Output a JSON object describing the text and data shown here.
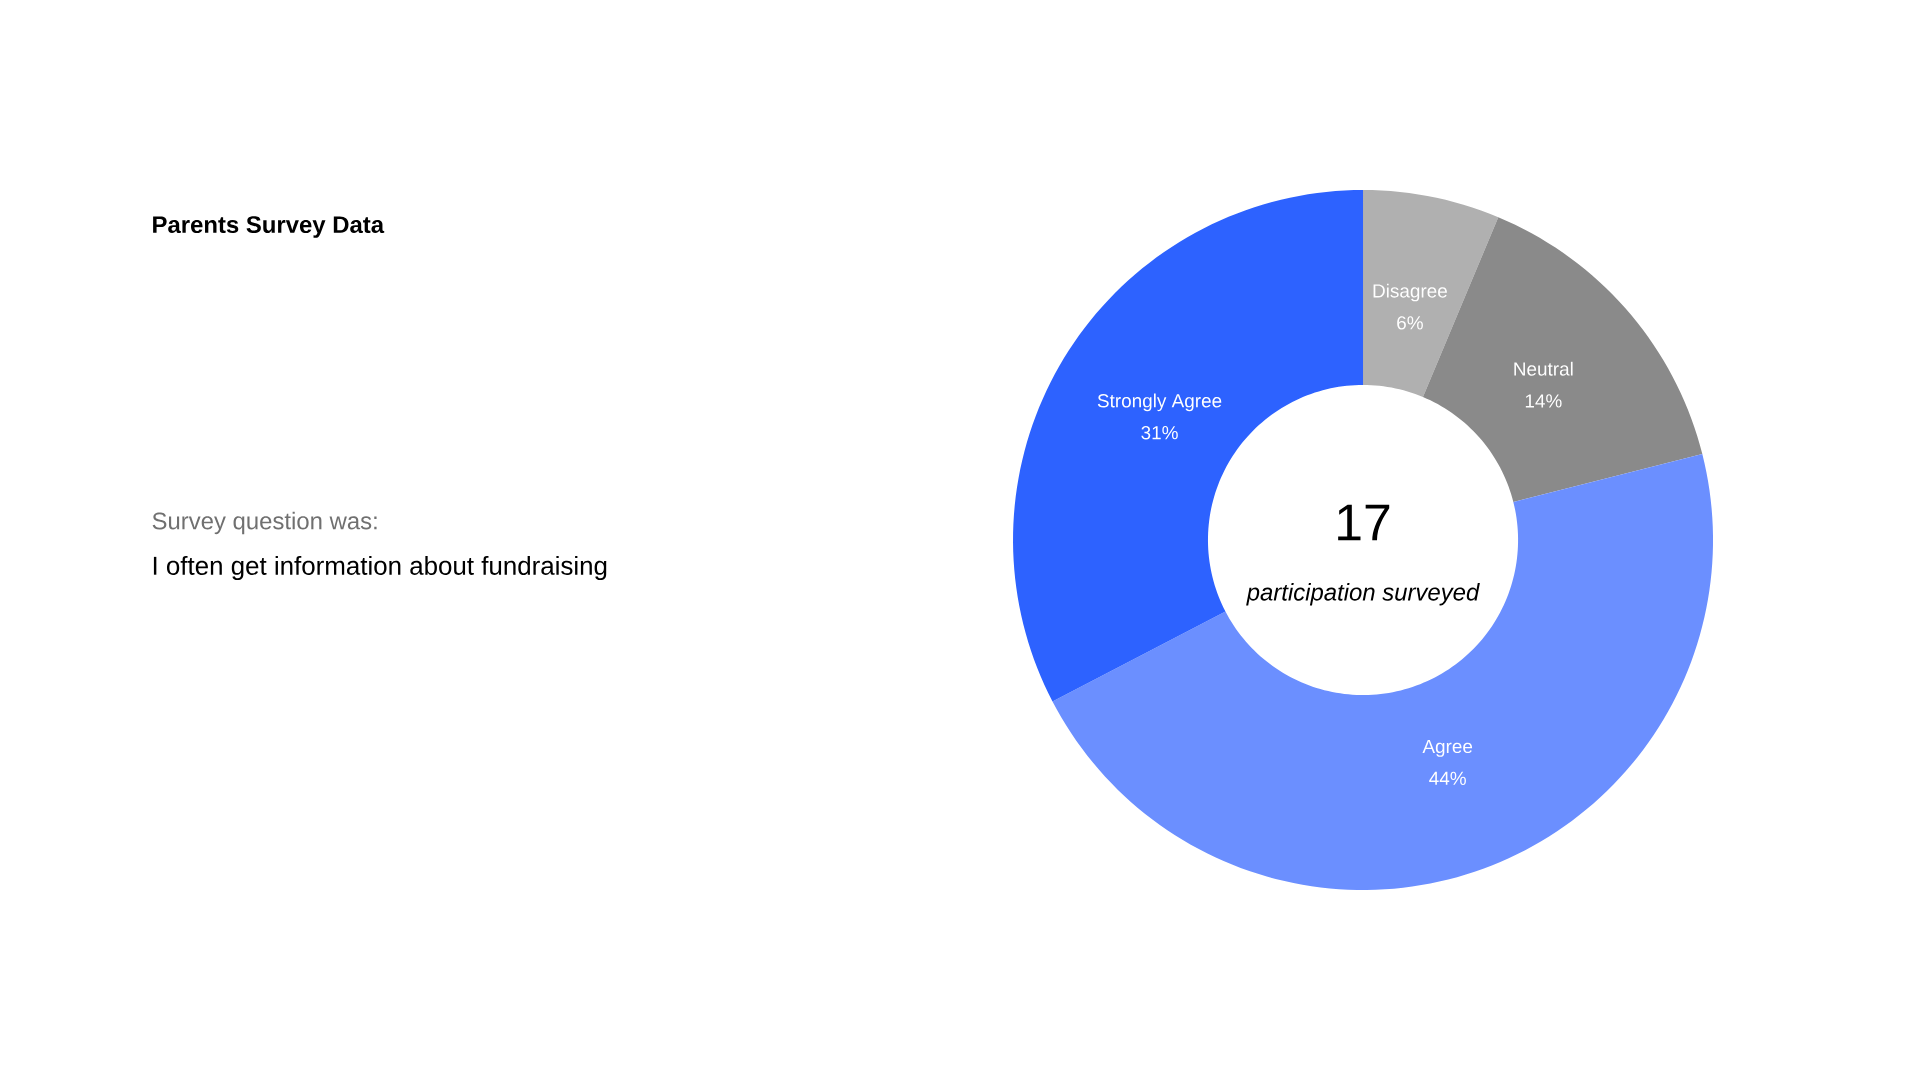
{
  "chart_data": {
    "type": "donut",
    "title": "Parents Survey Data",
    "categories": [
      "Disagree",
      "Neutral",
      "Agree",
      "Strongly Agree"
    ],
    "values": [
      6,
      14,
      44,
      31
    ],
    "value_labels": [
      "6%",
      "14%",
      "44%",
      "31%"
    ],
    "colors": [
      "#b0b0b0",
      "#8a8a8a",
      "#6b8fff",
      "#2d62ff"
    ],
    "annotations": [
      "17",
      "participation surveyed",
      "Survey question was:",
      "I often get information about fundraising"
    ]
  }
}
